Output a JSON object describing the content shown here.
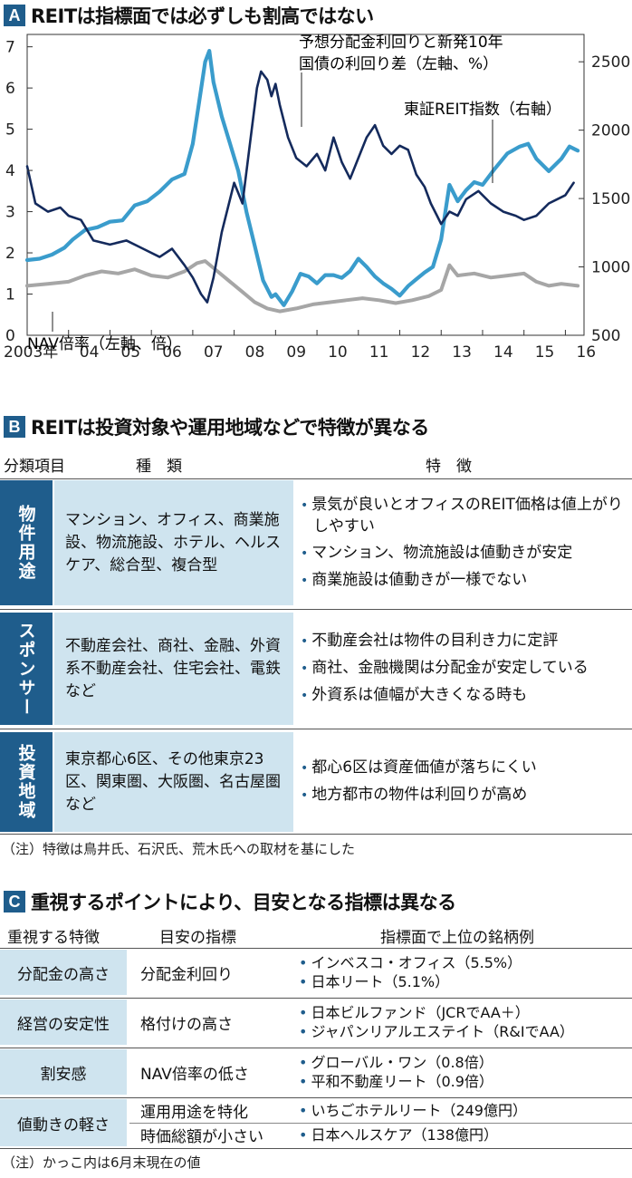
{
  "sectionA": {
    "letter": "A",
    "title": "REITは指標面では必ずしも割高ではない"
  },
  "chart_data": {
    "type": "line",
    "x_ticks": [
      "2003年",
      "04",
      "05",
      "06",
      "07",
      "08",
      "09",
      "10",
      "11",
      "12",
      "13",
      "14",
      "15",
      "16"
    ],
    "y_left_ticks": [
      "0",
      "1",
      "2",
      "3",
      "4",
      "5",
      "6",
      "7"
    ],
    "y_right_ticks": [
      "500",
      "1000",
      "1500",
      "2000",
      "2500"
    ],
    "ylim_left": [
      0,
      7.3
    ],
    "ylim_right": [
      500,
      2700
    ],
    "grid": false,
    "series": [
      {
        "name": "予想分配金利回りと新発10年国債の利回り差（左軸、%）",
        "axis": "left",
        "color": "#142a5c",
        "points": [
          [
            2003.0,
            4.1
          ],
          [
            2003.2,
            3.2
          ],
          [
            2003.5,
            3.0
          ],
          [
            2003.8,
            3.1
          ],
          [
            2004.0,
            2.9
          ],
          [
            2004.3,
            2.8
          ],
          [
            2004.6,
            2.3
          ],
          [
            2005.0,
            2.2
          ],
          [
            2005.4,
            2.3
          ],
          [
            2005.8,
            2.1
          ],
          [
            2006.2,
            1.9
          ],
          [
            2006.5,
            2.1
          ],
          [
            2006.8,
            1.7
          ],
          [
            2007.0,
            1.4
          ],
          [
            2007.2,
            1.0
          ],
          [
            2007.35,
            0.8
          ],
          [
            2007.5,
            1.4
          ],
          [
            2007.7,
            2.5
          ],
          [
            2008.0,
            3.7
          ],
          [
            2008.2,
            3.2
          ],
          [
            2008.4,
            4.8
          ],
          [
            2008.55,
            6.0
          ],
          [
            2008.65,
            6.4
          ],
          [
            2008.8,
            6.2
          ],
          [
            2008.9,
            5.8
          ],
          [
            2009.0,
            6.1
          ],
          [
            2009.1,
            5.6
          ],
          [
            2009.3,
            4.8
          ],
          [
            2009.5,
            4.3
          ],
          [
            2009.75,
            4.1
          ],
          [
            2010.0,
            4.4
          ],
          [
            2010.2,
            4.0
          ],
          [
            2010.4,
            4.8
          ],
          [
            2010.6,
            4.2
          ],
          [
            2010.8,
            3.8
          ],
          [
            2011.0,
            4.3
          ],
          [
            2011.2,
            4.8
          ],
          [
            2011.4,
            5.1
          ],
          [
            2011.6,
            4.6
          ],
          [
            2011.8,
            4.4
          ],
          [
            2012.0,
            4.6
          ],
          [
            2012.2,
            4.5
          ],
          [
            2012.4,
            3.9
          ],
          [
            2012.6,
            3.6
          ],
          [
            2012.75,
            3.2
          ],
          [
            2012.9,
            2.9
          ],
          [
            2013.0,
            2.7
          ],
          [
            2013.2,
            3.0
          ],
          [
            2013.4,
            2.9
          ],
          [
            2013.6,
            3.3
          ],
          [
            2013.9,
            3.5
          ],
          [
            2014.2,
            3.2
          ],
          [
            2014.5,
            3.0
          ],
          [
            2014.8,
            2.9
          ],
          [
            2015.0,
            2.8
          ],
          [
            2015.3,
            2.9
          ],
          [
            2015.6,
            3.2
          ],
          [
            2015.8,
            3.3
          ],
          [
            2016.0,
            3.4
          ],
          [
            2016.2,
            3.7
          ]
        ]
      },
      {
        "name": "東証REIT指数（右軸）",
        "axis": "right",
        "color": "#3a9ccc",
        "points": [
          [
            2003.0,
            1050
          ],
          [
            2003.3,
            1060
          ],
          [
            2003.6,
            1090
          ],
          [
            2003.9,
            1140
          ],
          [
            2004.1,
            1200
          ],
          [
            2004.4,
            1270
          ],
          [
            2004.7,
            1290
          ],
          [
            2005.0,
            1330
          ],
          [
            2005.3,
            1340
          ],
          [
            2005.6,
            1450
          ],
          [
            2005.9,
            1480
          ],
          [
            2006.2,
            1550
          ],
          [
            2006.5,
            1640
          ],
          [
            2006.8,
            1680
          ],
          [
            2007.0,
            1900
          ],
          [
            2007.15,
            2200
          ],
          [
            2007.3,
            2500
          ],
          [
            2007.4,
            2580
          ],
          [
            2007.5,
            2350
          ],
          [
            2007.7,
            2100
          ],
          [
            2007.9,
            1900
          ],
          [
            2008.1,
            1700
          ],
          [
            2008.3,
            1400
          ],
          [
            2008.5,
            1150
          ],
          [
            2008.7,
            900
          ],
          [
            2008.9,
            780
          ],
          [
            2009.0,
            800
          ],
          [
            2009.2,
            720
          ],
          [
            2009.4,
            820
          ],
          [
            2009.6,
            950
          ],
          [
            2009.8,
            930
          ],
          [
            2010.0,
            880
          ],
          [
            2010.2,
            940
          ],
          [
            2010.4,
            940
          ],
          [
            2010.6,
            920
          ],
          [
            2010.8,
            970
          ],
          [
            2011.0,
            1060
          ],
          [
            2011.2,
            1000
          ],
          [
            2011.4,
            930
          ],
          [
            2011.6,
            880
          ],
          [
            2011.8,
            840
          ],
          [
            2012.0,
            790
          ],
          [
            2012.2,
            860
          ],
          [
            2012.4,
            910
          ],
          [
            2012.6,
            960
          ],
          [
            2012.8,
            1000
          ],
          [
            2013.0,
            1200
          ],
          [
            2013.2,
            1600
          ],
          [
            2013.4,
            1480
          ],
          [
            2013.6,
            1560
          ],
          [
            2013.8,
            1620
          ],
          [
            2014.0,
            1600
          ],
          [
            2014.3,
            1720
          ],
          [
            2014.6,
            1830
          ],
          [
            2014.9,
            1880
          ],
          [
            2015.1,
            1900
          ],
          [
            2015.3,
            1790
          ],
          [
            2015.6,
            1700
          ],
          [
            2015.9,
            1790
          ],
          [
            2016.1,
            1880
          ],
          [
            2016.3,
            1850
          ]
        ]
      },
      {
        "name": "NAV倍率（左軸、倍）",
        "axis": "left",
        "color": "#a6a6a6",
        "points": [
          [
            2003.0,
            1.2
          ],
          [
            2003.5,
            1.25
          ],
          [
            2004.0,
            1.3
          ],
          [
            2004.4,
            1.45
          ],
          [
            2004.8,
            1.55
          ],
          [
            2005.2,
            1.5
          ],
          [
            2005.6,
            1.6
          ],
          [
            2006.0,
            1.45
          ],
          [
            2006.4,
            1.4
          ],
          [
            2006.8,
            1.55
          ],
          [
            2007.1,
            1.75
          ],
          [
            2007.3,
            1.8
          ],
          [
            2007.6,
            1.55
          ],
          [
            2007.9,
            1.3
          ],
          [
            2008.2,
            1.05
          ],
          [
            2008.5,
            0.8
          ],
          [
            2008.8,
            0.65
          ],
          [
            2009.1,
            0.58
          ],
          [
            2009.5,
            0.65
          ],
          [
            2009.9,
            0.75
          ],
          [
            2010.3,
            0.8
          ],
          [
            2010.7,
            0.85
          ],
          [
            2011.1,
            0.9
          ],
          [
            2011.5,
            0.85
          ],
          [
            2011.9,
            0.78
          ],
          [
            2012.3,
            0.85
          ],
          [
            2012.7,
            0.95
          ],
          [
            2013.0,
            1.1
          ],
          [
            2013.2,
            1.7
          ],
          [
            2013.4,
            1.45
          ],
          [
            2013.8,
            1.5
          ],
          [
            2014.2,
            1.4
          ],
          [
            2014.6,
            1.45
          ],
          [
            2015.0,
            1.5
          ],
          [
            2015.3,
            1.3
          ],
          [
            2015.6,
            1.2
          ],
          [
            2015.9,
            1.25
          ],
          [
            2016.3,
            1.2
          ]
        ]
      }
    ],
    "annotations": {
      "spread": [
        "予想分配金利回りと新発10年",
        "国債の利回り差（左軸、%）"
      ],
      "reit": "東証REIT指数（右軸）",
      "nav": "NAV倍率（左軸、倍）"
    }
  },
  "sectionB": {
    "letter": "B",
    "title": "REITは投資対象や運用地域などで特徴が異なる",
    "headers": [
      "分類項目",
      "種　類",
      "特　徴"
    ],
    "rows": [
      {
        "category": "物件用途",
        "kinds": "マンション、オフィス、商業施設、物流施設、ホテル、ヘルスケア、総合型、複合型",
        "features": [
          "景気が良いとオフィスのREIT価格は値上がりしやすい",
          "マンション、物流施設は値動きが安定",
          "商業施設は値動きが一様でない"
        ]
      },
      {
        "category": "スポンサー",
        "kinds": "不動産会社、商社、金融、外資系不動産会社、住宅会社、電鉄など",
        "features": [
          "不動産会社は物件の目利き力に定評",
          "商社、金融機関は分配金が安定している",
          "外資系は値幅が大きくなる時も"
        ]
      },
      {
        "category": "投資地域",
        "kinds": "東京都心6区、その他東京23区、関東圏、大阪圏、名古屋圏など",
        "features": [
          "都心6区は資産価値が落ちにくい",
          "地方都市の物件は利回りが高め"
        ]
      }
    ],
    "note": "（注）特徴は鳥井氏、石沢氏、荒木氏への取材を基にした"
  },
  "sectionC": {
    "letter": "C",
    "title": "重視するポイントにより、目安となる指標は異なる",
    "headers": [
      "重視する特徴",
      "目安の指標",
      "指標面で上位の銘柄例"
    ],
    "rows": [
      {
        "feature": "分配金の高さ",
        "indicator": "分配金利回り",
        "examples": [
          "インベスコ・オフィス（5.5%）",
          "日本リート（5.1%）"
        ]
      },
      {
        "feature": "経営の安定性",
        "indicator": "格付けの高さ",
        "examples": [
          "日本ビルファンド（JCRでAA＋）",
          "ジャパンリアルエステイト（R&IでAA）"
        ]
      },
      {
        "feature": "割安感",
        "indicator": "NAV倍率の低さ",
        "examples": [
          "グローバル・ワン（0.8倍）",
          "平和不動産リート（0.9倍）"
        ]
      },
      {
        "feature": "値動きの軽さ",
        "indicator": "運用用途を特化",
        "examples": [
          "いちごホテルリート（249億円）"
        ]
      },
      {
        "feature": "",
        "indicator": "時価総額が小さい",
        "examples": [
          "日本ヘルスケア（138億円）"
        ]
      }
    ],
    "note": "（注）かっこ内は6月末現在の値"
  }
}
